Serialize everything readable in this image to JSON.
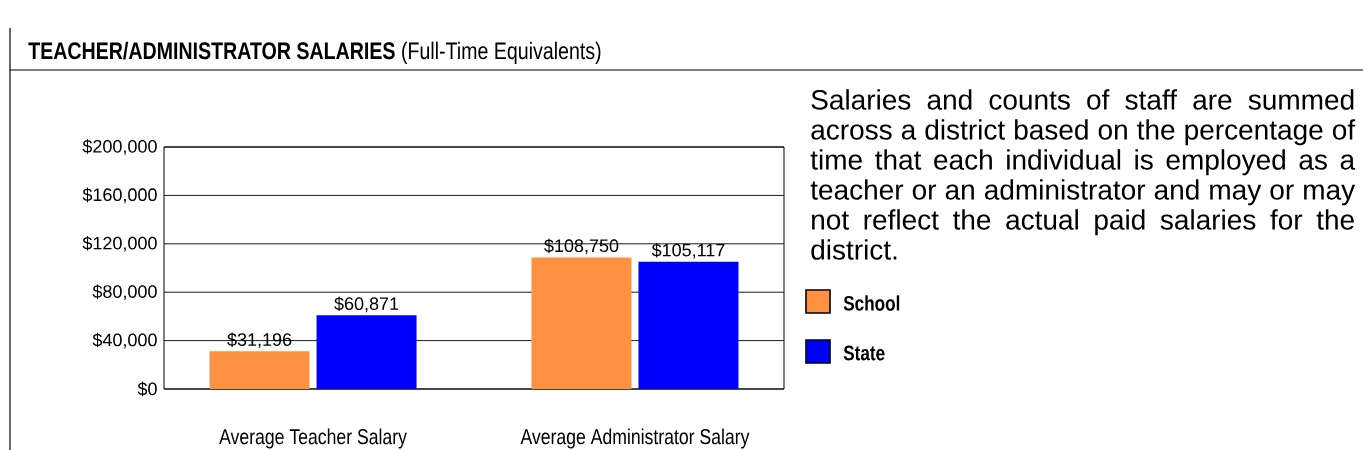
{
  "chart_data": {
    "type": "bar",
    "title": "**TEACHER/ADMINISTRATOR SALARIES** (Full-Time Equivalents)",
    "categories": [
      "Average Teacher Salary",
      "Average Administrator Salary"
    ],
    "series": [
      {
        "name": "School",
        "color": "#fe9041",
        "values": [
          31196,
          108750
        ],
        "value_labels": [
          "$31,196",
          "$108,750"
        ]
      },
      {
        "name": "State",
        "color": "#0000fe",
        "values": [
          60871,
          105117
        ],
        "value_labels": [
          "$60,871",
          "$105,117"
        ]
      }
    ],
    "ylim": [
      0,
      200000
    ],
    "yticks": [
      {
        "value": 0,
        "label": "$0"
      },
      {
        "value": 40000,
        "label": "$40,000"
      },
      {
        "value": 80000,
        "label": "$80,000"
      },
      {
        "value": 120000,
        "label": "$120,000"
      },
      {
        "value": 160000,
        "label": "$160,000"
      },
      {
        "value": 200000,
        "label": "$200,000"
      }
    ],
    "grid": "y",
    "legend": "right",
    "annotations": [
      "Salaries and counts of staff are summed across a district based on the percentage of time that each individual is employed as a teacher or an administrator and may or may not reflect the actual paid salaries for the district."
    ]
  }
}
